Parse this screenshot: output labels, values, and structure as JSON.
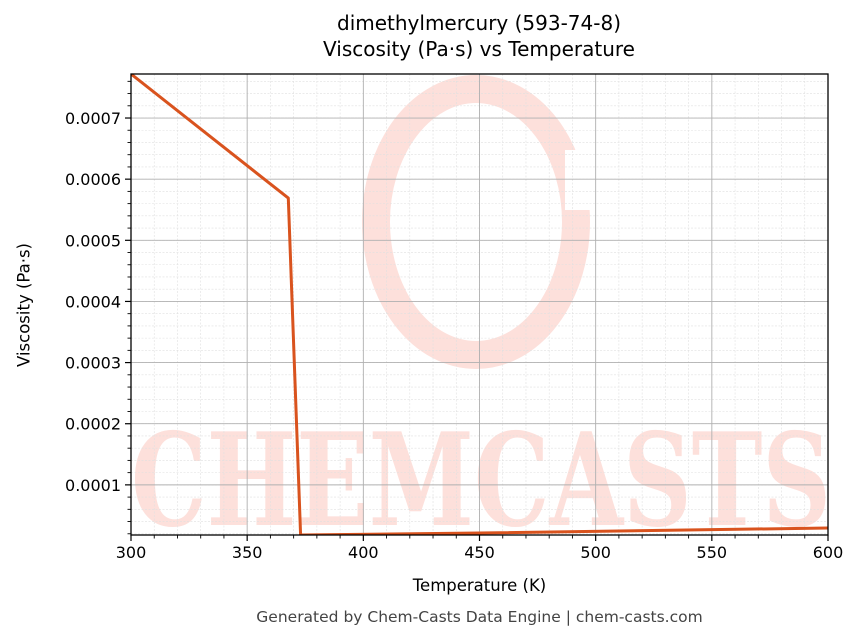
{
  "title_line1": "dimethylmercury (593-74-8)",
  "title_line2": "Viscosity (Pa·s) vs Temperature",
  "footer": "Generated by Chem-Casts Data Engine | chem-casts.com",
  "watermark": "CHEMCASTS",
  "colors": {
    "line": "#d9531e",
    "watermark": "#fde0db",
    "major_grid": "#b0b0b0",
    "minor_grid": "#e0e0e0"
  },
  "chart_data": {
    "type": "line",
    "title": "dimethylmercury (593-74-8)\nViscosity (Pa·s) vs Temperature",
    "xlabel": "Temperature (K)",
    "ylabel": "Viscosity (Pa·s)",
    "xlim": [
      300,
      600
    ],
    "ylim": [
      1.8e-05,
      0.000772
    ],
    "xticks": [
      300,
      350,
      400,
      450,
      500,
      550,
      600
    ],
    "xtick_labels": [
      "300",
      "350",
      "400",
      "450",
      "500",
      "550",
      "600"
    ],
    "yticks": [
      0.0001,
      0.0002,
      0.0003,
      0.0004,
      0.0005,
      0.0006,
      0.0007
    ],
    "ytick_labels": [
      "0.0001",
      "0.0002",
      "0.0003",
      "0.0004",
      "0.0005",
      "0.0006",
      "0.0007"
    ],
    "grid": true,
    "minor_grid": true,
    "legend": null,
    "series": [
      {
        "name": "Viscosity",
        "x": [
          300,
          367.7,
          373,
          450,
          600
        ],
        "y": [
          0.000772,
          0.000569,
          1.8e-05,
          2.13e-05,
          2.95e-05
        ]
      }
    ]
  }
}
